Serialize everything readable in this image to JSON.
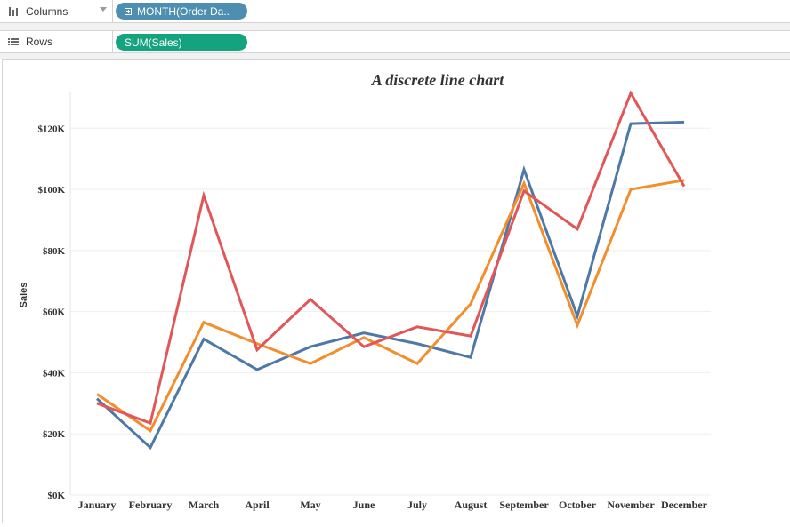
{
  "shelves": {
    "columns": {
      "label": "Columns",
      "pill": "MONTH(Order Da..",
      "icon": "columns-icon"
    },
    "rows": {
      "label": "Rows",
      "pill": "SUM(Sales)",
      "icon": "rows-icon"
    }
  },
  "colors": {
    "pill_columns": "#4e8fb1",
    "pill_rows": "#14a37f",
    "series": [
      "#4e79a7",
      "#f28e2b",
      "#e15759"
    ]
  },
  "chart_data": {
    "type": "line",
    "title": "A discrete line chart",
    "xlabel": "",
    "ylabel": "Sales",
    "categories": [
      "January",
      "February",
      "March",
      "April",
      "May",
      "June",
      "July",
      "August",
      "September",
      "October",
      "November",
      "December"
    ],
    "yticks": [
      0,
      20000,
      40000,
      60000,
      80000,
      100000,
      120000
    ],
    "ytick_labels": [
      "$0K",
      "$20K",
      "$40K",
      "$60K",
      "$80K",
      "$100K",
      "$120K"
    ],
    "ylim": [
      0,
      132000
    ],
    "grid": true,
    "legend": "none",
    "series": [
      {
        "values": [
          31500,
          15500,
          51000,
          41000,
          48500,
          53000,
          49500,
          45000,
          106500,
          58500,
          121500,
          122000
        ]
      },
      {
        "values": [
          33000,
          21000,
          56500,
          49500,
          43000,
          51500,
          43000,
          62500,
          102000,
          55500,
          100000,
          103000
        ]
      },
      {
        "values": [
          30000,
          23500,
          98000,
          47500,
          64000,
          48500,
          55000,
          52000,
          99500,
          87000,
          131500,
          101000
        ]
      }
    ]
  }
}
